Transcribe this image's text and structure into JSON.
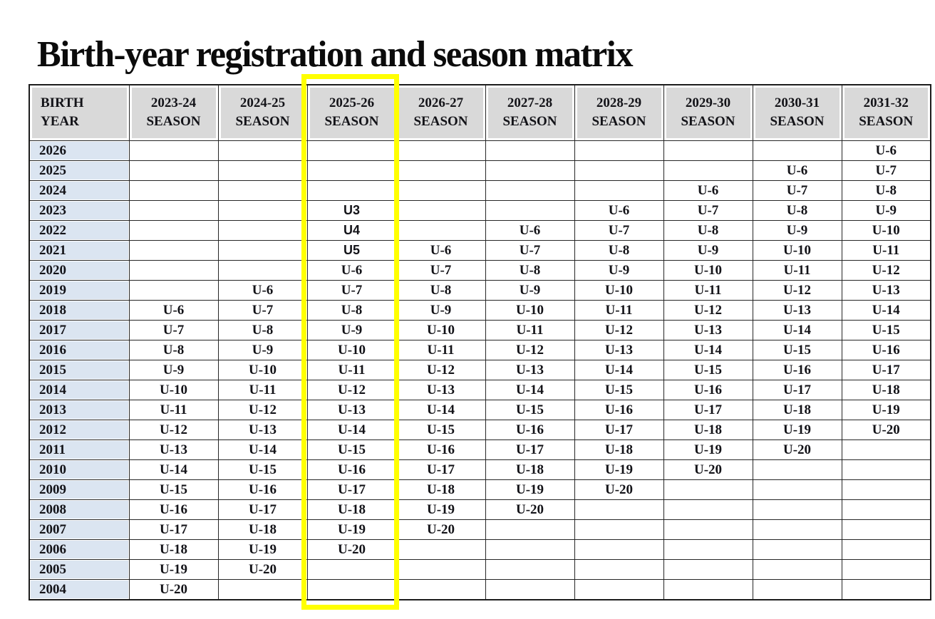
{
  "page": {
    "title": "Birth-year registration and season matrix"
  },
  "table": {
    "corner_header": [
      "BIRTH",
      "YEAR"
    ],
    "season_word": "SEASON",
    "seasons": [
      "2023-24",
      "2024-25",
      "2025-26",
      "2026-27",
      "2027-28",
      "2028-29",
      "2029-30",
      "2030-31",
      "2031-32"
    ],
    "highlighted_season": "2025-26",
    "colors": {
      "header_bg": "#d9d9d9",
      "year_col_bg": "#dbe5f1",
      "highlight_border": "#ffff00",
      "grid_line": "#262626",
      "text": "#131318"
    },
    "rows": [
      {
        "year": "2026",
        "cells": [
          "",
          "",
          "",
          "",
          "",
          "",
          "",
          "",
          "U-6"
        ]
      },
      {
        "year": "2025",
        "cells": [
          "",
          "",
          "",
          "",
          "",
          "",
          "",
          "U-6",
          "U-7"
        ]
      },
      {
        "year": "2024",
        "cells": [
          "",
          "",
          "",
          "",
          "",
          "",
          "U-6",
          "U-7",
          "U-8"
        ]
      },
      {
        "year": "2023",
        "cells": [
          "",
          "",
          "U3",
          "",
          "",
          "U-6",
          "U-7",
          "U-8",
          "U-9"
        ]
      },
      {
        "year": "2022",
        "cells": [
          "",
          "",
          "U4",
          "",
          "U-6",
          "U-7",
          "U-8",
          "U-9",
          "U-10"
        ]
      },
      {
        "year": "2021",
        "cells": [
          "",
          "",
          "U5",
          "U-6",
          "U-7",
          "U-8",
          "U-9",
          "U-10",
          "U-11"
        ]
      },
      {
        "year": "2020",
        "cells": [
          "",
          "",
          "U-6",
          "U-7",
          "U-8",
          "U-9",
          "U-10",
          "U-11",
          "U-12"
        ]
      },
      {
        "year": "2019",
        "cells": [
          "",
          "U-6",
          "U-7",
          "U-8",
          "U-9",
          "U-10",
          "U-11",
          "U-12",
          "U-13"
        ]
      },
      {
        "year": "2018",
        "cells": [
          "U-6",
          "U-7",
          "U-8",
          "U-9",
          "U-10",
          "U-11",
          "U-12",
          "U-13",
          "U-14"
        ]
      },
      {
        "year": "2017",
        "cells": [
          "U-7",
          "U-8",
          "U-9",
          "U-10",
          "U-11",
          "U-12",
          "U-13",
          "U-14",
          "U-15"
        ]
      },
      {
        "year": "2016",
        "cells": [
          "U-8",
          "U-9",
          "U-10",
          "U-11",
          "U-12",
          "U-13",
          "U-14",
          "U-15",
          "U-16"
        ]
      },
      {
        "year": "2015",
        "cells": [
          "U-9",
          "U-10",
          "U-11",
          "U-12",
          "U-13",
          "U-14",
          "U-15",
          "U-16",
          "U-17"
        ]
      },
      {
        "year": "2014",
        "cells": [
          "U-10",
          "U-11",
          "U-12",
          "U-13",
          "U-14",
          "U-15",
          "U-16",
          "U-17",
          "U-18"
        ]
      },
      {
        "year": "2013",
        "cells": [
          "U-11",
          "U-12",
          "U-13",
          "U-14",
          "U-15",
          "U-16",
          "U-17",
          "U-18",
          "U-19"
        ]
      },
      {
        "year": "2012",
        "cells": [
          "U-12",
          "U-13",
          "U-14",
          "U-15",
          "U-16",
          "U-17",
          "U-18",
          "U-19",
          "U-20"
        ]
      },
      {
        "year": "2011",
        "cells": [
          "U-13",
          "U-14",
          "U-15",
          "U-16",
          "U-17",
          "U-18",
          "U-19",
          "U-20",
          ""
        ]
      },
      {
        "year": "2010",
        "cells": [
          "U-14",
          "U-15",
          "U-16",
          "U-17",
          "U-18",
          "U-19",
          "U-20",
          "",
          ""
        ]
      },
      {
        "year": "2009",
        "cells": [
          "U-15",
          "U-16",
          "U-17",
          "U-18",
          "U-19",
          "U-20",
          "",
          "",
          ""
        ]
      },
      {
        "year": "2008",
        "cells": [
          "U-16",
          "U-17",
          "U-18",
          "U-19",
          "U-20",
          "",
          "",
          "",
          ""
        ]
      },
      {
        "year": "2007",
        "cells": [
          "U-17",
          "U-18",
          "U-19",
          "U-20",
          "",
          "",
          "",
          "",
          ""
        ]
      },
      {
        "year": "2006",
        "cells": [
          "U-18",
          "U-19",
          "U-20",
          "",
          "",
          "",
          "",
          "",
          ""
        ]
      },
      {
        "year": "2005",
        "cells": [
          "U-19",
          "U-20",
          "",
          "",
          "",
          "",
          "",
          "",
          ""
        ]
      },
      {
        "year": "2004",
        "cells": [
          "U-20",
          "",
          "",
          "",
          "",
          "",
          "",
          "",
          ""
        ]
      }
    ]
  }
}
